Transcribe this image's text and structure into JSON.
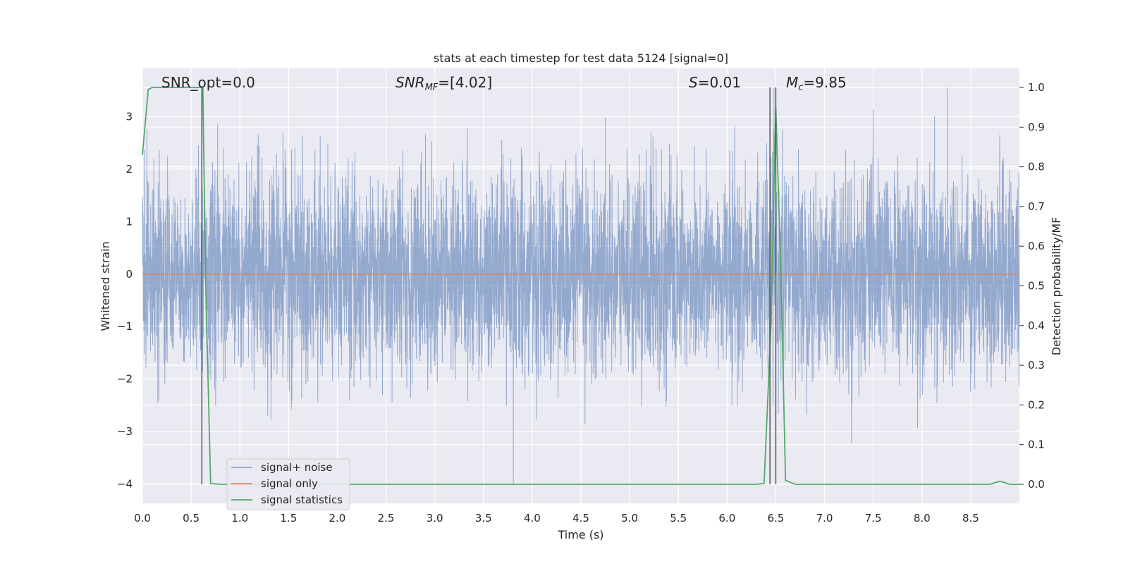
{
  "chart_data": {
    "type": "line",
    "title": "stats at each timestep for test data 5124 [signal=0]",
    "xlabel": "Time (s)",
    "ylabel": "Whitened strain",
    "y2label": "Detection probability/MF",
    "xlim": [
      0,
      9.0
    ],
    "ylim": [
      -4.37,
      3.92
    ],
    "y2lim": [
      -0.048,
      1.048
    ],
    "x_ticks": [
      0.0,
      0.5,
      1.0,
      1.5,
      2.0,
      2.5,
      3.0,
      3.5,
      4.0,
      4.5,
      5.0,
      5.5,
      6.0,
      6.5,
      7.0,
      7.5,
      8.0,
      8.5
    ],
    "x_tick_labels": [
      "0.0",
      "0.5",
      "1.0",
      "1.5",
      "2.0",
      "2.5",
      "3.0",
      "3.5",
      "4.0",
      "4.5",
      "5.0",
      "5.5",
      "6.0",
      "6.5",
      "7.0",
      "7.5",
      "8.0",
      "8.5"
    ],
    "y_ticks": [
      3,
      2,
      1,
      0,
      -1,
      -2,
      -3,
      -4
    ],
    "y_tick_labels": [
      "3",
      "2",
      "1",
      "0",
      "−1",
      "−2",
      "−3",
      "−4"
    ],
    "y2_ticks": [
      1.0,
      0.9,
      0.8,
      0.7,
      0.6,
      0.5,
      0.4,
      0.3,
      0.2,
      0.1,
      0.0
    ],
    "y2_tick_labels": [
      "1.0",
      "0.9",
      "0.8",
      "0.7",
      "0.6",
      "0.5",
      "0.4",
      "0.3",
      "0.2",
      "0.1",
      "0.0"
    ],
    "grid": true,
    "legend_placement": "lower-left",
    "annotations": {
      "snr_opt": "SNR_opt=0.0",
      "snr_mf_main": "SNR",
      "snr_mf_sub": "MF",
      "snr_mf_rest": "=[4.02]",
      "s_var": "S",
      "s_rest": "=0.01",
      "mc_var": "M",
      "mc_sub": "c",
      "mc_rest": "=9.85"
    },
    "noise_envelope": {
      "description_free": true,
      "typical_max": 2.0,
      "typical_min": -2.0,
      "peak_max": 3.55,
      "peak_min": -4.0
    },
    "series": [
      {
        "name": "signal+ noise",
        "color": "#4c72b0",
        "axis": "left",
        "x_range": [
          0,
          9.0
        ],
        "amplitude_sigma": 1.0
      },
      {
        "name": "signal only",
        "color": "#dd8452",
        "axis": "left",
        "x": [
          0,
          9.0
        ],
        "y": [
          0,
          0
        ]
      },
      {
        "name": "signal statistics",
        "color": "#55a868",
        "axis": "right",
        "x": [
          0.0,
          0.06,
          0.1,
          0.2,
          0.3,
          0.4,
          0.5,
          0.55,
          0.6,
          0.62,
          0.65,
          0.7,
          0.8,
          1.0,
          2.0,
          3.0,
          4.0,
          5.0,
          6.0,
          6.3,
          6.38,
          6.45,
          6.5,
          6.55,
          6.6,
          6.7,
          7.0,
          8.0,
          8.7,
          8.8,
          8.9,
          9.0
        ],
        "y": [
          0.83,
          0.995,
          1.0,
          1.0,
          1.0,
          1.0,
          1.0,
          1.0,
          1.0,
          0.998,
          0.5,
          0.002,
          0.0,
          0.0,
          0.0,
          0.0,
          0.0,
          0.0,
          0.0,
          0.0,
          0.002,
          0.4,
          0.95,
          0.55,
          0.01,
          0.0,
          0.0,
          0.0,
          0.0,
          0.008,
          0.0,
          0.0
        ]
      }
    ],
    "vertical_markers": [
      0.61,
      6.44,
      6.5
    ]
  }
}
